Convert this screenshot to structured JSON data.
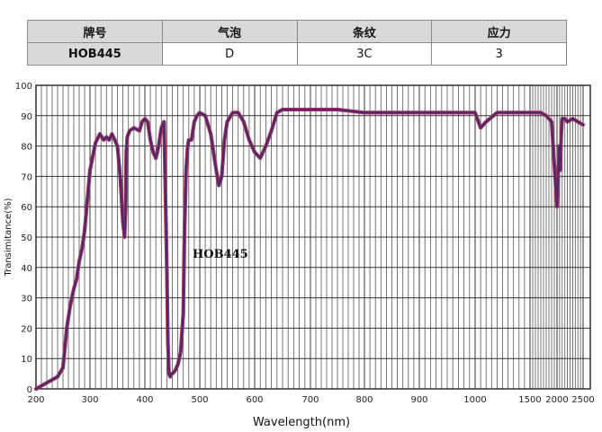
{
  "spec_table": {
    "headers": [
      "牌号",
      "气泡",
      "条纹",
      "应力"
    ],
    "values": [
      "HOB445",
      "D",
      "3C",
      "3"
    ]
  },
  "chart_data": {
    "type": "line",
    "title": "",
    "xlabel": "Wavelength(nm)",
    "ylabel": "Transimitance(%)",
    "x_ticks": [
      200,
      300,
      400,
      500,
      600,
      700,
      800,
      900,
      1000,
      1500,
      2000,
      2500
    ],
    "x_tick_labels": [
      "200",
      "300",
      "400",
      "500",
      "600",
      "700",
      "800",
      "900",
      "1000",
      "1500",
      "2000",
      "2500"
    ],
    "ylim": [
      0,
      100
    ],
    "y_ticks": [
      0,
      10,
      20,
      30,
      40,
      50,
      60,
      70,
      80,
      90,
      100
    ],
    "y_tick_labels": [
      "0",
      "10",
      "20",
      "30",
      "40",
      "50",
      "60",
      "70",
      "80",
      "90",
      "100"
    ],
    "grid": true,
    "curve_color": "#4a2a6e",
    "annotation": "HOB445",
    "series": [
      {
        "x": [
          200,
          220,
          240,
          250,
          257,
          263,
          270,
          275,
          280,
          285,
          290,
          295,
          300,
          310,
          318,
          325,
          330,
          335,
          340,
          345,
          350,
          355,
          360,
          363,
          365,
          366,
          368,
          370,
          372,
          380,
          390,
          395,
          400,
          405,
          410,
          415,
          420,
          425,
          430,
          435,
          440,
          442,
          444,
          446,
          448,
          450,
          455,
          460,
          465,
          470,
          472,
          475,
          478,
          480,
          485,
          490,
          495,
          500,
          510,
          520,
          530,
          535,
          540,
          545,
          550,
          560,
          570,
          580,
          590,
          600,
          610,
          620,
          630,
          640,
          650,
          660,
          670,
          680,
          700,
          750,
          800,
          850,
          900,
          950,
          1000,
          1050,
          1100,
          1200,
          1300,
          1400,
          1500,
          1550,
          1600,
          1650,
          1700,
          1800,
          1900,
          2000,
          2040,
          2060,
          2080,
          2100,
          2150,
          2200,
          2300,
          2400,
          2500
        ],
        "y": [
          0,
          2,
          4,
          7,
          20,
          27,
          33,
          36,
          42,
          46,
          52,
          62,
          72,
          81,
          84,
          82,
          83,
          82,
          84,
          82,
          80,
          70,
          55,
          50,
          60,
          78,
          83,
          84,
          85,
          86,
          85,
          88,
          89,
          88,
          82,
          78,
          76,
          80,
          86,
          88,
          40,
          15,
          5,
          4,
          5,
          5,
          6,
          8,
          12,
          25,
          50,
          72,
          80,
          82,
          82,
          88,
          90,
          91,
          90,
          84,
          72,
          67,
          70,
          82,
          88,
          91,
          91,
          88,
          82,
          78,
          76,
          80,
          85,
          91,
          92,
          92,
          92,
          92,
          92,
          92,
          91,
          91,
          91,
          91,
          91,
          86,
          88,
          91,
          91,
          91,
          91,
          91,
          91,
          91,
          91,
          90,
          88,
          60,
          80,
          72,
          83,
          89,
          89,
          88,
          89,
          88,
          87
        ]
      }
    ]
  }
}
